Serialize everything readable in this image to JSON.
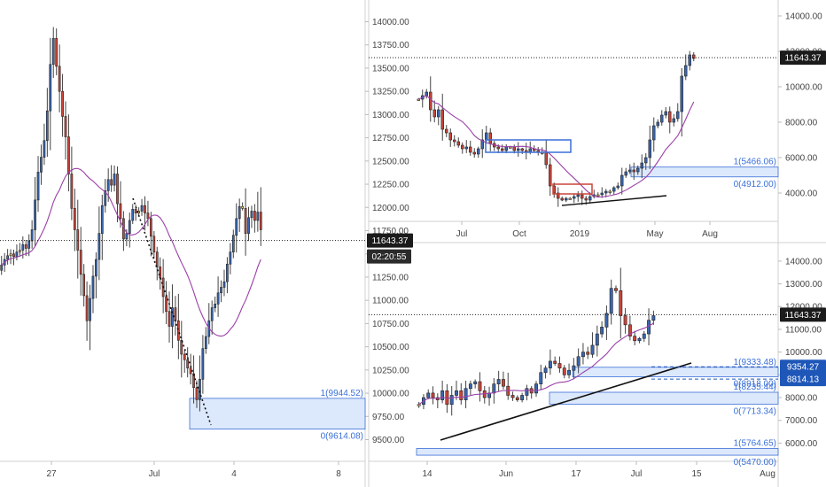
{
  "colors": {
    "up": "#3a66b0",
    "down": "#c8453a",
    "neutral": "#f1c66a",
    "wick": "#444444",
    "ma": "#9b3fa8",
    "fib_fill": "#dce8fb",
    "fib_line": "#3a6fd8",
    "price_tag_bg": "#1b1b1b",
    "level_tag_bg": "#1f57b8"
  },
  "chart_data": [
    {
      "type": "candlestick",
      "panel": "left",
      "ylim": [
        9400,
        14100
      ],
      "y_ticks": [
        "14000.00",
        "13750.00",
        "13500.00",
        "13250.00",
        "13000.00",
        "12750.00",
        "12500.00",
        "12250.00",
        "12000.00",
        "11750.00",
        "11500.00",
        "11250.00",
        "11000.00",
        "10750.00",
        "10500.00",
        "10250.00",
        "10000.00",
        "9750.00",
        "9500.00"
      ],
      "x_ticks": [
        "27",
        "Jul",
        "4",
        "8"
      ],
      "last_price": "11643.37",
      "countdown": "02:20:55",
      "fib": [
        {
          "label": "1(9944.52)",
          "value": 9944.52
        },
        {
          "label": "0(9614.08)",
          "value": 9614.08
        }
      ],
      "close_series": [
        11380,
        11440,
        11480,
        11500,
        11470,
        11520,
        11540,
        11600,
        11560,
        11640,
        11760,
        12080,
        12380,
        12540,
        12720,
        13040,
        13540,
        13820,
        13520,
        13250,
        12980,
        12760,
        12360,
        11990,
        11760,
        11540,
        11280,
        11050,
        10780,
        11020,
        11260,
        11440,
        11720,
        12020,
        12180,
        12300,
        12240,
        12360,
        12040,
        11880,
        11660,
        11720,
        11860,
        11980,
        11940,
        11960,
        12020,
        11940,
        11880,
        11690,
        11520,
        11360,
        11240,
        11040,
        10880,
        10720,
        10920,
        10780,
        10570,
        10420,
        10360,
        10270,
        10210,
        10060,
        9930,
        10150,
        10480,
        10610,
        10780,
        10920,
        10960,
        11080,
        11140,
        11200,
        11390,
        11520,
        11700,
        11880,
        12010,
        11990,
        11720,
        11890,
        11960,
        11860,
        11950,
        11760
      ]
    },
    {
      "type": "candlestick",
      "panel": "top-right",
      "ylim": [
        2900,
        14500
      ],
      "y_ticks": [
        "14000.00",
        "12000.00",
        "10000.00",
        "8000.00",
        "6000.00",
        "4000.00"
      ],
      "x_ticks": [
        "Jul",
        "Oct",
        "2019",
        "May",
        "Aug"
      ],
      "last_price": "11643.37",
      "fib": [
        {
          "label": "1(5466.06)",
          "value": 5466.06
        },
        {
          "label": "0(4912.00)",
          "value": 4912.0
        }
      ],
      "close_series": [
        9300,
        9500,
        9700,
        8700,
        8300,
        8700,
        7600,
        7400,
        7000,
        6900,
        6700,
        6500,
        6600,
        6300,
        6200,
        6500,
        7000,
        7400,
        6800,
        6600,
        6500,
        6400,
        6600,
        6600,
        6400,
        6500,
        6400,
        6300,
        6500,
        6400,
        6300,
        6300,
        5600,
        4400,
        4000,
        3700,
        3600,
        3700,
        3700,
        3800,
        3900,
        3700,
        3600,
        3800,
        3900,
        3900,
        4000,
        4100,
        4100,
        4300,
        4400,
        5000,
        5200,
        5300,
        5200,
        5400,
        5700,
        6000,
        7000,
        7800,
        8000,
        8400,
        8600,
        8000,
        8200,
        8600,
        10600,
        11200,
        11800,
        11600
      ]
    },
    {
      "type": "candlestick",
      "panel": "bottom-right",
      "ylim": [
        5200,
        14500
      ],
      "y_ticks": [
        "14000.00",
        "13000.00",
        "12000.00",
        "11000.00",
        "10000.00",
        "9000.00",
        "8000.00",
        "7000.00",
        "6000.00"
      ],
      "x_ticks": [
        "14",
        "Jun",
        "17",
        "Jul",
        "15",
        "Aug"
      ],
      "last_price": "11643.37",
      "level_tags": [
        "9354.27",
        "8814.13"
      ],
      "fib": [
        {
          "label": "1(9333.48)",
          "value": 9333.48
        },
        {
          "label": "0(8918.00)",
          "value": 8918.0
        },
        {
          "label": "1(8235.44)",
          "value": 8235.44
        },
        {
          "label": "0(7713.34)",
          "value": 7713.34
        },
        {
          "label": "1(5764.65)",
          "value": 5764.65
        },
        {
          "label": "0(5470.00)",
          "value": 5470.0
        }
      ],
      "close_series": [
        7700,
        8000,
        8200,
        8000,
        7900,
        8300,
        7700,
        8100,
        8300,
        7900,
        8400,
        8600,
        8700,
        8300,
        8000,
        8200,
        8600,
        8800,
        8500,
        8100,
        8000,
        7900,
        8100,
        8400,
        8200,
        8600,
        9100,
        9300,
        9600,
        9500,
        9300,
        9000,
        9200,
        9400,
        9800,
        10000,
        9900,
        10300,
        10800,
        11100,
        11700,
        12800,
        12700,
        11600,
        11200,
        10700,
        10500,
        10600,
        10800,
        11400,
        11600
      ]
    }
  ]
}
